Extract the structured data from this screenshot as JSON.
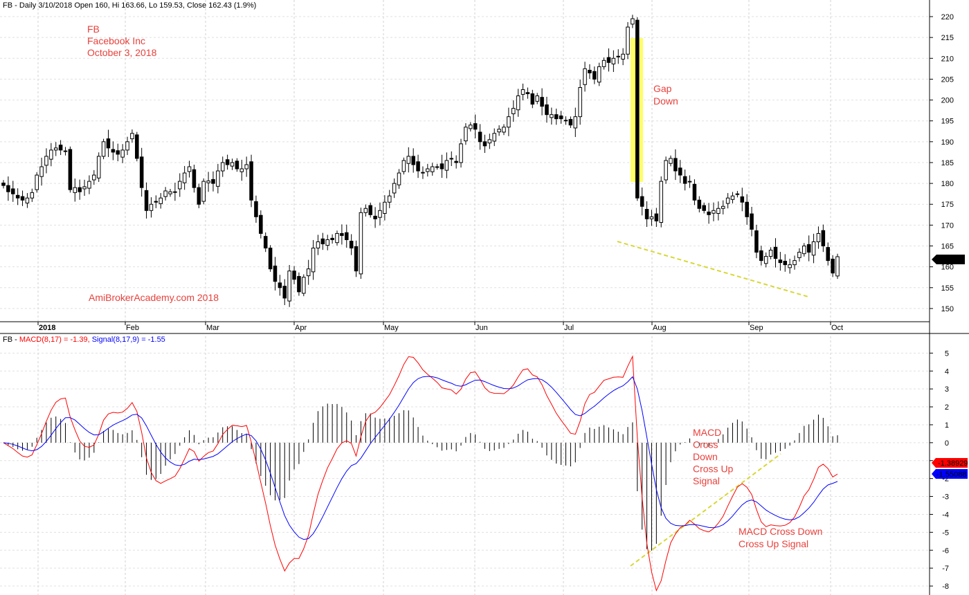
{
  "header": {
    "price_title": "FB - Daily 3/10/2018 Open 160, Hi 163.66, Lo 159.53, Close 162.43 (1.9%)",
    "macd_prefix": "FB - ",
    "macd_label": "MACD(8,17) = -1.39,",
    "signal_label": "Signal(8,17,9) = -1.55"
  },
  "annotations": {
    "stock": [
      "FB",
      "Facebook Inc",
      "October 3, 2018"
    ],
    "gap": [
      "Gap",
      "Down"
    ],
    "watermark": "AmiBrokerAcademy.com  2018",
    "macd_note": [
      "MACD",
      "Cross",
      "Down",
      "Cross Up",
      "Signal"
    ],
    "macd_note2": [
      "MACD Cross Down",
      "Cross Up Signal"
    ]
  },
  "colors": {
    "price": "#000000",
    "macd": "#ff0000",
    "signal": "#0000ff",
    "annotation": "#e8413c",
    "gap_highlight": "#ffff66",
    "trendline": "#d7d735"
  },
  "chart_data": [
    {
      "type": "candlestick",
      "title": "FB - Daily 3/10/2018 Open 160, Hi 163.66, Lo 159.53, Close 162.43 (1.9%)",
      "x_labels": [
        "2018",
        "Feb",
        "Mar",
        "Apr",
        "May",
        "Jun",
        "Jul",
        "Aug",
        "Sep",
        "Oct"
      ],
      "y_ticks": [
        150,
        155,
        160,
        165,
        170,
        175,
        180,
        185,
        190,
        195,
        200,
        205,
        210,
        215,
        220
      ],
      "ylim": [
        147,
        221
      ],
      "last_value_label": "162.43",
      "close_series": [
        179.5,
        178,
        177.5,
        176.5,
        176,
        176.5,
        177.8,
        182,
        184,
        186.5,
        188,
        188.5,
        188,
        187.8,
        178.5,
        179,
        178,
        179.2,
        180.5,
        182,
        186.5,
        190,
        188.5,
        187.5,
        187,
        188,
        190,
        192,
        186,
        179,
        173.5,
        175,
        175.5,
        176.5,
        178.2,
        178,
        178,
        180.5,
        182.5,
        184,
        179,
        175,
        180.5,
        180.6,
        180,
        183,
        185,
        184.5,
        185,
        183.5,
        183.5,
        184.5,
        176,
        172,
        168,
        164.5,
        159.5,
        156.5,
        155,
        152.5,
        159,
        157,
        154,
        157.5,
        159.5,
        164.5,
        166,
        165.5,
        166.5,
        166.5,
        168,
        167.5,
        166.5,
        164.5,
        159,
        173,
        174,
        172.5,
        171.5,
        173.5,
        175.5,
        177,
        180,
        182.5,
        185.5,
        186.5,
        184.5,
        183,
        182.5,
        183.5,
        184,
        184,
        183.5,
        185.5,
        186,
        185,
        189.5,
        193.5,
        194,
        193,
        190,
        189,
        190.5,
        192,
        193,
        193.5,
        196,
        198,
        201,
        202.5,
        201.5,
        199,
        201,
        198.5,
        196.5,
        196.5,
        195.5,
        195.5,
        195,
        194,
        196,
        203,
        207.5,
        206.5,
        205,
        208,
        209.5,
        209,
        210,
        210.5,
        211,
        217.5,
        219.5,
        176.5,
        174.5,
        171.5,
        172,
        171,
        180.5,
        185.5,
        186,
        183,
        182,
        180,
        180.5,
        176,
        174,
        173.5,
        172.5,
        173.5,
        174,
        174.5,
        176.5,
        177,
        177.5,
        175.5,
        172,
        169,
        163.5,
        161.5,
        162.5,
        164,
        162,
        161,
        160.5,
        160.5,
        161.5,
        163.5,
        165,
        163.5,
        166,
        168,
        165,
        161.5,
        158.5,
        162.43
      ]
    },
    {
      "type": "line",
      "title": "MACD(8,17) = -1.39, Signal(8,17,9) = -1.55",
      "y_ticks": [
        5,
        4,
        3,
        2,
        1,
        0,
        -1,
        -2,
        -3,
        -4,
        -5,
        -6,
        -7,
        -8
      ],
      "ylim": [
        -8.5,
        5.4
      ],
      "series": [
        {
          "name": "MACD(8,17)",
          "last_value_label": "-1.38929"
        },
        {
          "name": "Signal(8,17,9)",
          "last_value_label": "-1.55088"
        }
      ]
    }
  ]
}
